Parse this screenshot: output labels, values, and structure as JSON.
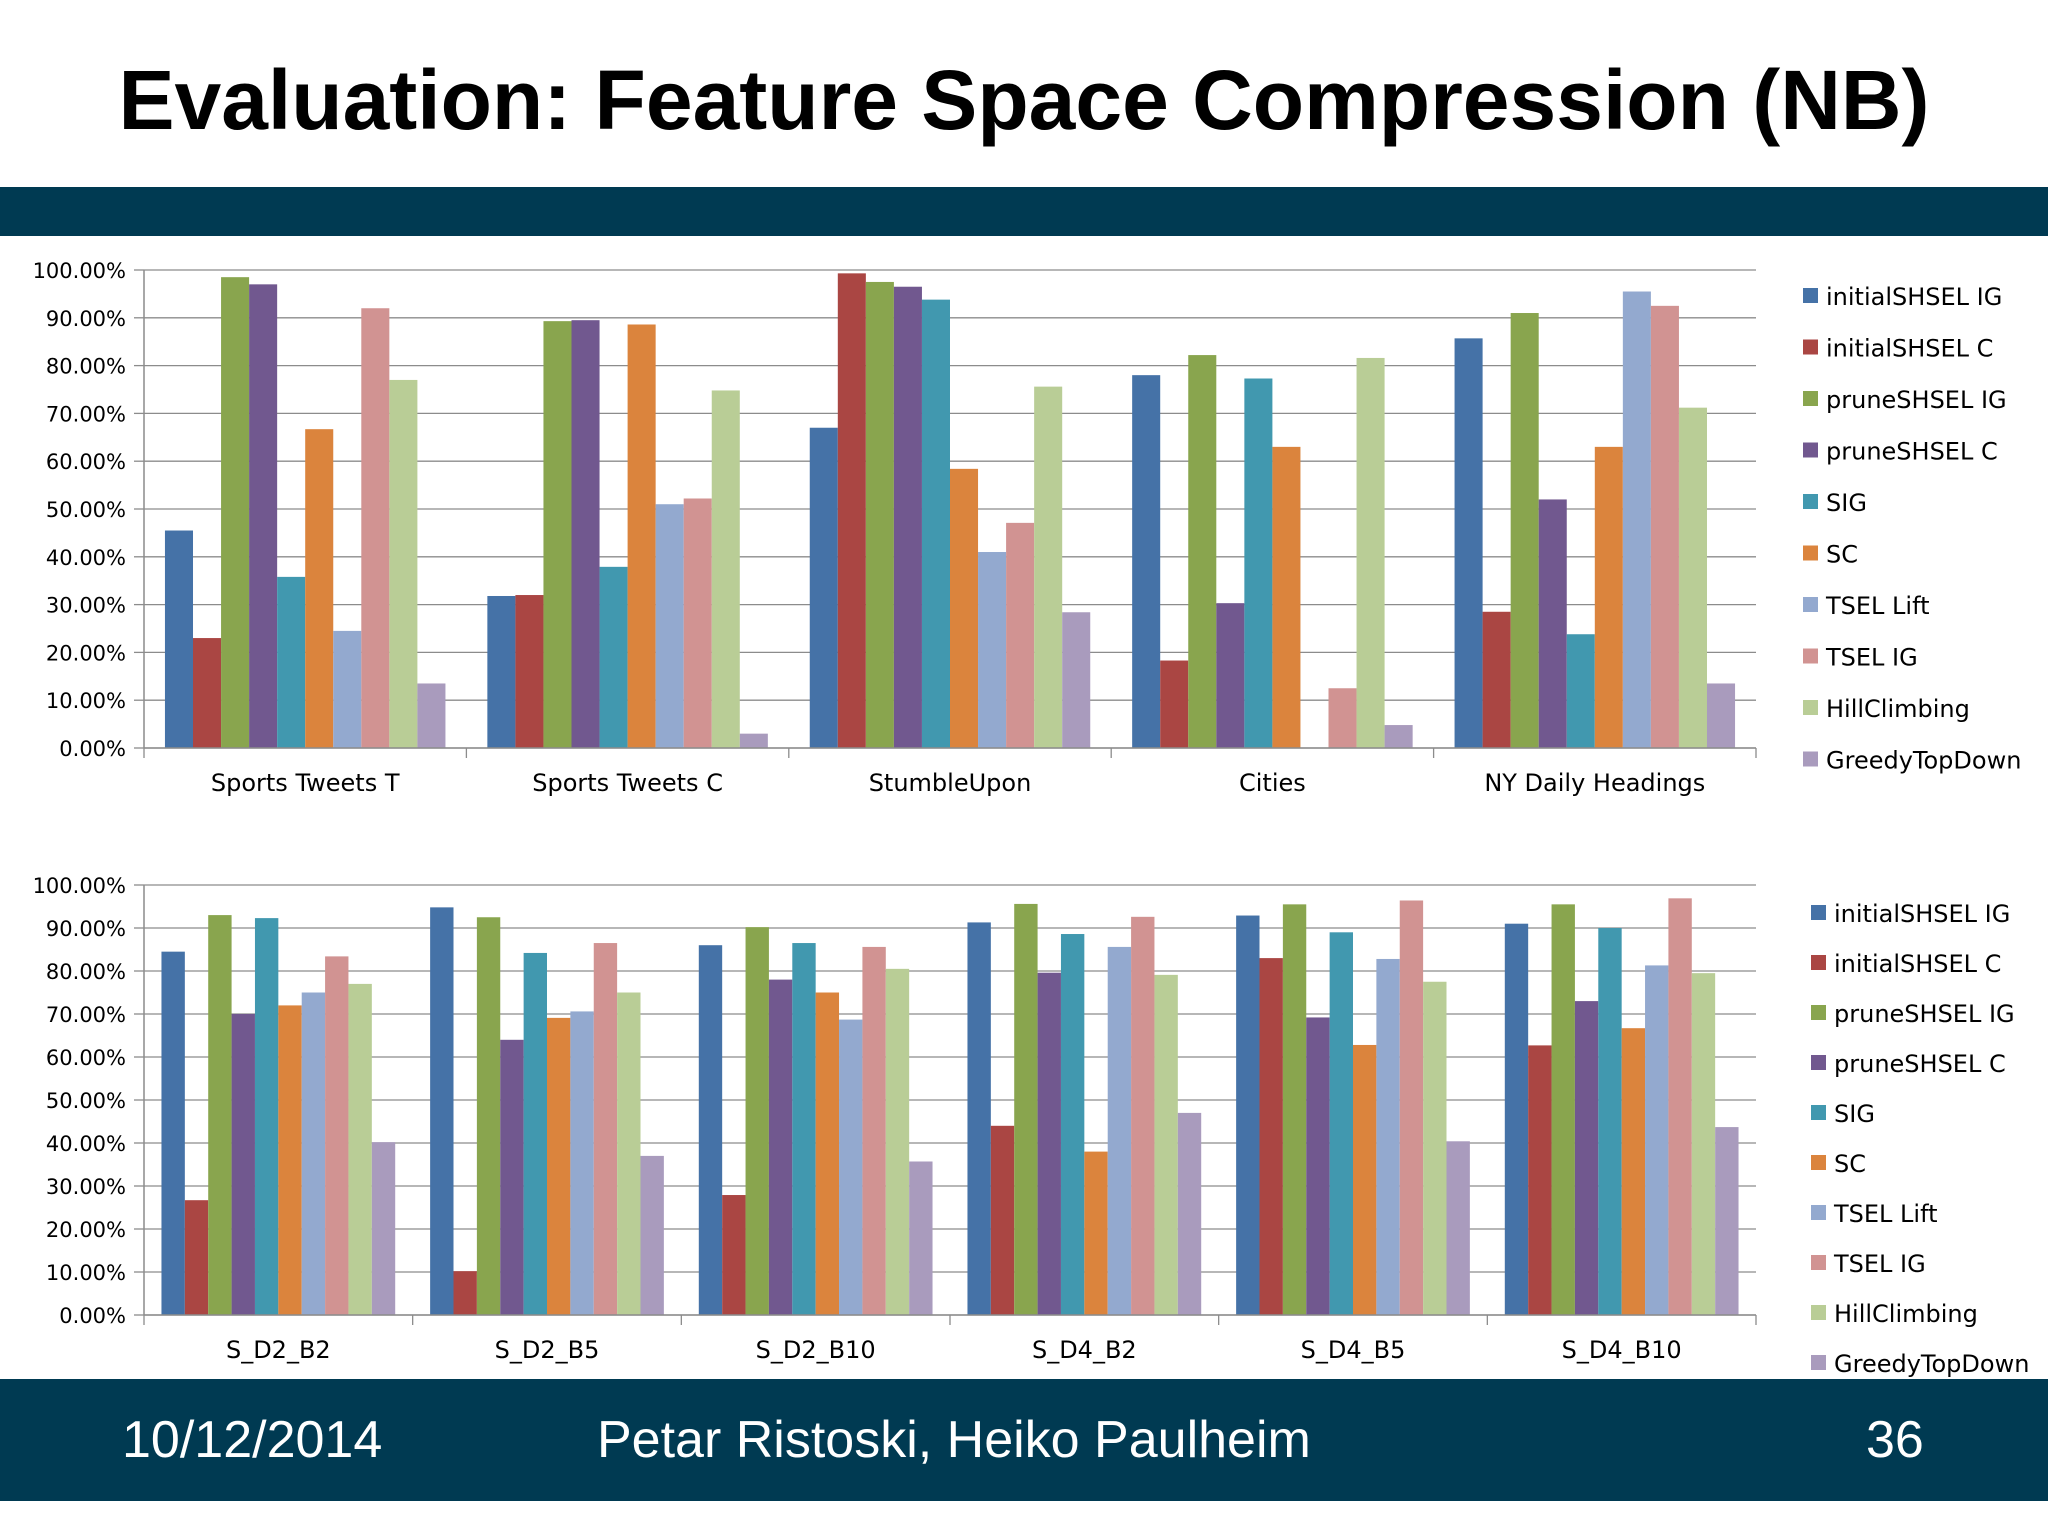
{
  "slide": {
    "title": "Evaluation: Feature Space Compression (NB)",
    "footer_date": "10/12/2014",
    "footer_authors": "Petar Ristoski, Heiko Paulheim",
    "page_number": "36"
  },
  "colors": {
    "band": "#003a52",
    "series": [
      "#4572a7",
      "#aa4643",
      "#89a54e",
      "#71588f",
      "#4198af",
      "#db843d",
      "#93a9cf",
      "#d19392",
      "#b9cd96",
      "#a99bbd"
    ]
  },
  "chart_data": [
    {
      "type": "bar",
      "title": "",
      "xlabel": "",
      "ylabel": "",
      "ylim": [
        0,
        100
      ],
      "yticks": [
        "0.00%",
        "10.00%",
        "20.00%",
        "30.00%",
        "40.00%",
        "50.00%",
        "60.00%",
        "70.00%",
        "80.00%",
        "90.00%",
        "100.00%"
      ],
      "grid": true,
      "legend": "right",
      "categories": [
        "Sports Tweets T",
        "Sports Tweets C",
        "StumbleUpon",
        "Cities",
        "NY Daily Headings"
      ],
      "series": [
        {
          "name": "initialSHSEL IG",
          "values": [
            45.5,
            31.8,
            67.0,
            78.0,
            85.7
          ]
        },
        {
          "name": "initialSHSEL C",
          "values": [
            23.0,
            32.0,
            99.3,
            18.3,
            28.5
          ]
        },
        {
          "name": "pruneSHSEL IG",
          "values": [
            98.5,
            89.3,
            97.5,
            82.2,
            91.0
          ]
        },
        {
          "name": "pruneSHSEL C",
          "values": [
            97.0,
            89.5,
            96.5,
            30.3,
            52.0
          ]
        },
        {
          "name": "SIG",
          "values": [
            35.8,
            37.9,
            93.8,
            77.3,
            23.8
          ]
        },
        {
          "name": "SC",
          "values": [
            66.7,
            88.6,
            58.4,
            63.0,
            63.0
          ]
        },
        {
          "name": "TSEL Lift",
          "values": [
            24.5,
            51.0,
            41.0,
            0,
            95.5
          ]
        },
        {
          "name": "TSEL IG",
          "values": [
            92.0,
            52.2,
            47.1,
            12.5,
            92.5
          ]
        },
        {
          "name": "HillClimbing",
          "values": [
            77.0,
            74.8,
            75.6,
            81.6,
            71.2
          ]
        },
        {
          "name": "GreedyTopDown",
          "values": [
            13.5,
            3.0,
            28.4,
            4.8,
            13.5
          ]
        }
      ]
    },
    {
      "type": "bar",
      "title": "",
      "xlabel": "",
      "ylabel": "",
      "ylim": [
        0,
        100
      ],
      "yticks": [
        "0.00%",
        "10.00%",
        "20.00%",
        "30.00%",
        "40.00%",
        "50.00%",
        "60.00%",
        "70.00%",
        "80.00%",
        "90.00%",
        "100.00%"
      ],
      "grid": true,
      "legend": "right",
      "categories": [
        "S_D2_B2",
        "S_D2_B5",
        "S_D2_B10",
        "S_D4_B2",
        "S_D4_B5",
        "S_D4_B10"
      ],
      "series": [
        {
          "name": "initialSHSEL IG",
          "values": [
            84.5,
            94.8,
            86.0,
            91.3,
            92.9,
            91.0
          ]
        },
        {
          "name": "initialSHSEL C",
          "values": [
            26.7,
            10.2,
            27.9,
            44.0,
            83.0,
            62.7
          ]
        },
        {
          "name": "pruneSHSEL IG",
          "values": [
            93.0,
            92.5,
            90.2,
            95.6,
            95.5,
            95.5
          ]
        },
        {
          "name": "pruneSHSEL C",
          "values": [
            70.0,
            64.0,
            78.0,
            79.6,
            69.2,
            73.0
          ]
        },
        {
          "name": "SIG",
          "values": [
            92.3,
            84.2,
            86.5,
            88.6,
            89.0,
            90.0
          ]
        },
        {
          "name": "SC",
          "values": [
            72.0,
            69.1,
            75.0,
            38.0,
            62.8,
            66.7
          ]
        },
        {
          "name": "TSEL Lift",
          "values": [
            75.0,
            70.6,
            68.7,
            85.6,
            82.8,
            81.3
          ]
        },
        {
          "name": "TSEL IG",
          "values": [
            83.4,
            86.5,
            85.6,
            92.6,
            96.4,
            96.9
          ]
        },
        {
          "name": "HillClimbing",
          "values": [
            77.0,
            75.0,
            80.5,
            79.1,
            77.5,
            79.5
          ]
        },
        {
          "name": "GreedyTopDown",
          "values": [
            40.2,
            37.0,
            35.7,
            47.0,
            40.4,
            43.7
          ]
        }
      ]
    }
  ]
}
